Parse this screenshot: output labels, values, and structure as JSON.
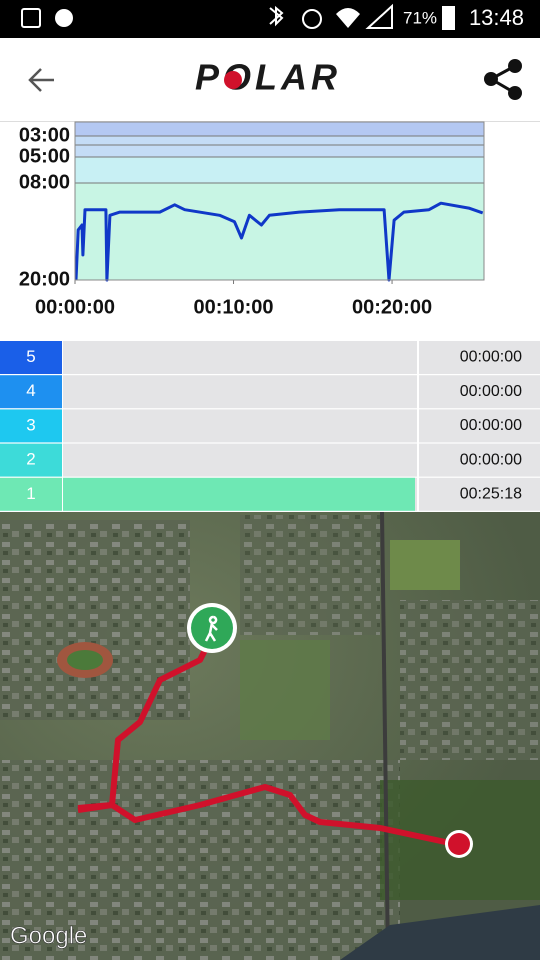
{
  "status_bar": {
    "battery": "71%",
    "time": "13:48"
  },
  "app_bar": {
    "logo": "POLAR"
  },
  "pace_chart": {
    "type": "line",
    "x": [
      0.06,
      0.2,
      0.44,
      0.5,
      0.63,
      1.95,
      2.01,
      2.2,
      2.83,
      5.35,
      6.29,
      6.92,
      9.12,
      10.06,
      10.5,
      11.0,
      11.76,
      12.26,
      14.15,
      16.67,
      19.5,
      19.81,
      20.13,
      20.75,
      22.33,
      23.08,
      24.84,
      25.72
    ],
    "series": [
      {
        "color": "#1038c8",
        "values": [
          20,
          13.8,
          13.2,
          16.9,
          11.3,
          11.3,
          20,
          12.0,
          11.6,
          11.6,
          10.7,
          11.3,
          12.0,
          12.8,
          14.8,
          12.0,
          13.2,
          12.0,
          11.6,
          11.3,
          11.3,
          20,
          12.6,
          11.6,
          11.3,
          10.5,
          11.1,
          11.7
        ]
      }
    ],
    "xlim": [
      0,
      25.8
    ],
    "xticks": [
      {
        "value": 0,
        "label": "00:00:00"
      },
      {
        "value": 10,
        "label": "00:10:00"
      },
      {
        "value": 20,
        "label": "00:20:00"
      }
    ],
    "yticks": [
      {
        "value": 3,
        "label": "03:00"
      },
      {
        "value": 5,
        "label": "05:00"
      },
      {
        "value": 8,
        "label": "08:00"
      },
      {
        "value": 20,
        "label": "20:00"
      }
    ]
  },
  "zones": [
    {
      "zone": "5",
      "time": "00:00:00",
      "color": "#1a5fe8"
    },
    {
      "zone": "4",
      "time": "00:00:00",
      "color": "#1e90f0"
    },
    {
      "zone": "3",
      "time": "00:00:00",
      "color": "#1ec8f0"
    },
    {
      "zone": "2",
      "time": "00:00:00",
      "color": "#3ddbd9"
    },
    {
      "zone": "1",
      "time": "00:25:18",
      "color": "#6ee8b4"
    }
  ],
  "map": {
    "attribution": "Google"
  }
}
